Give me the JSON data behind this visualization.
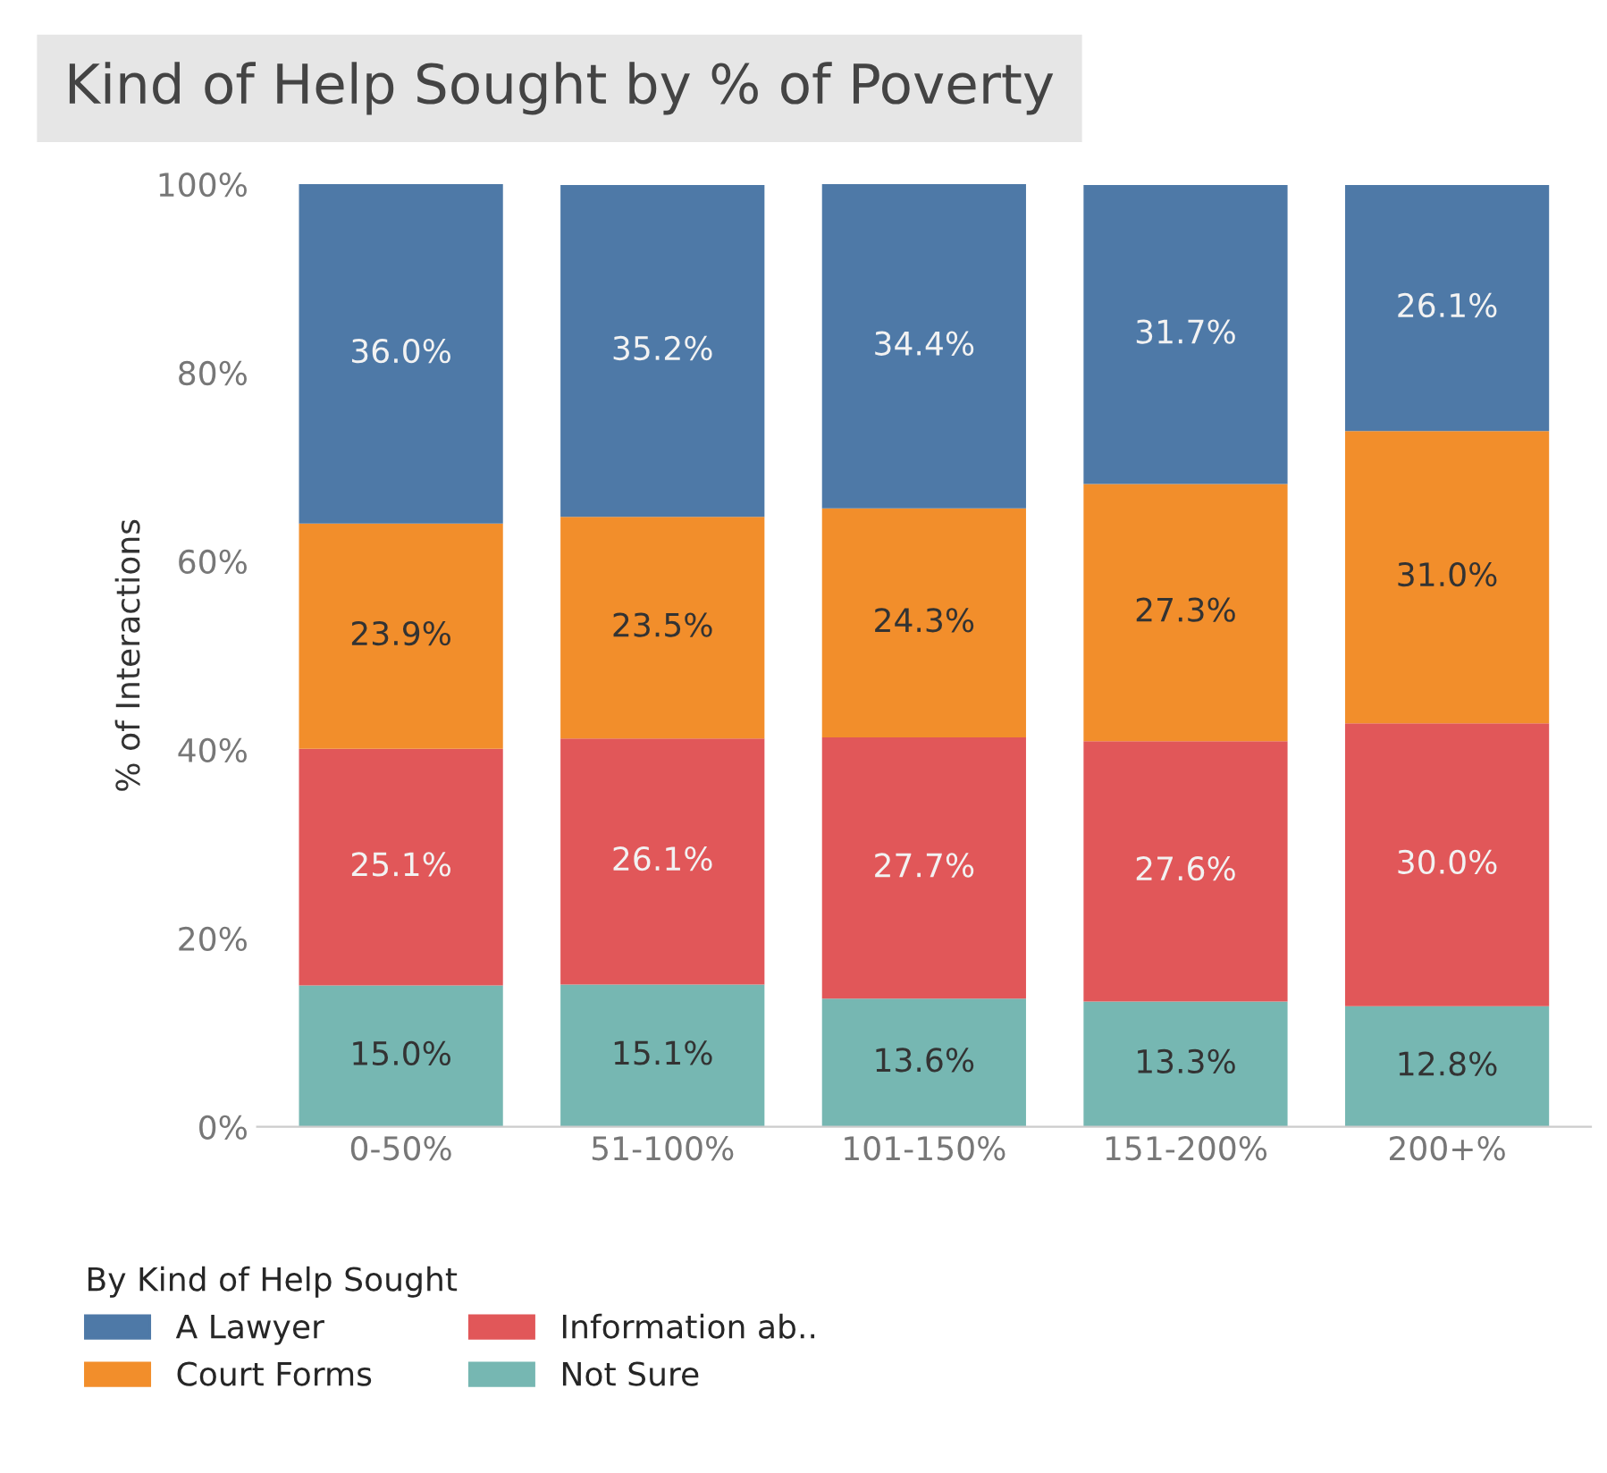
{
  "chart_data": {
    "type": "bar",
    "title": "Kind of Help Sought by % of Poverty",
    "ylabel": "% of Interactions",
    "legend_title": "By Kind of Help Sought",
    "categories": [
      "0-50%",
      "51-100%",
      "101-150%",
      "151-200%",
      "200+%"
    ],
    "stacked": true,
    "series": [
      {
        "name": "Not Sure",
        "color": "#76b7b2",
        "values": [
          15.0,
          15.1,
          13.6,
          13.3,
          12.8
        ],
        "value_labels": [
          "15.0%",
          "15.1%",
          "13.6%",
          "13.3%",
          "12.8%"
        ]
      },
      {
        "name": "Information ab..",
        "color": "#e15759",
        "values": [
          25.1,
          26.1,
          27.7,
          27.6,
          30.0
        ],
        "value_labels": [
          "25.1%",
          "26.1%",
          "27.7%",
          "27.6%",
          "30.0%"
        ]
      },
      {
        "name": "Court Forms",
        "color": "#f28e2b",
        "values": [
          23.9,
          23.5,
          24.3,
          27.3,
          31.0
        ],
        "value_labels": [
          "23.9%",
          "23.5%",
          "24.3%",
          "27.3%",
          "31.0%"
        ]
      },
      {
        "name": "A Lawyer",
        "color": "#4e79a7",
        "values": [
          36.0,
          35.2,
          34.4,
          31.7,
          26.1
        ],
        "value_labels": [
          "36.0%",
          "35.2%",
          "34.4%",
          "31.7%",
          "26.1%"
        ]
      }
    ],
    "ylim": [
      0,
      100
    ],
    "yticks": [
      {
        "value": 0,
        "label": "0%"
      },
      {
        "value": 20,
        "label": "20%"
      },
      {
        "value": 40,
        "label": "40%"
      },
      {
        "value": 60,
        "label": "60%"
      },
      {
        "value": 80,
        "label": "80%"
      },
      {
        "value": 100,
        "label": "100%"
      }
    ],
    "grid": false,
    "legend": "bottom"
  }
}
